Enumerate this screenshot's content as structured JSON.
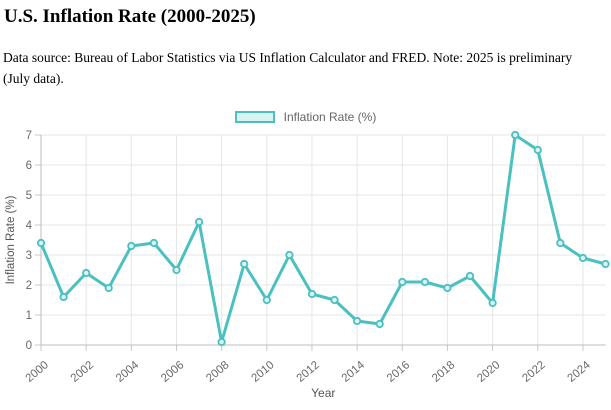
{
  "page": {
    "title": "U.S. Inflation Rate (2000-2025)",
    "subtitle": "Data source: Bureau of Labor Statistics via US Inflation Calculator and FRED. Note: 2025 is preliminary (July data)."
  },
  "legend": {
    "label": "Inflation Rate (%)"
  },
  "colors": {
    "line": "#4BC0C0",
    "point_fill": "#DCF1F0",
    "legend_fill": "rgba(75,192,192,0.2)",
    "gridline": "#E6E6E6",
    "axis_line": "#BDBDBD",
    "tick_mark": "#C9C9C9",
    "tick_text": "#686868",
    "axis_title_text": "#555555"
  },
  "chart_data": {
    "type": "line",
    "title": "U.S. Inflation Rate (2000-2025)",
    "x": [
      2000,
      2001,
      2002,
      2003,
      2004,
      2005,
      2006,
      2007,
      2008,
      2009,
      2010,
      2011,
      2012,
      2013,
      2014,
      2015,
      2016,
      2017,
      2018,
      2019,
      2020,
      2021,
      2022,
      2023,
      2024,
      2025
    ],
    "series": [
      {
        "name": "Inflation Rate (%)",
        "values": [
          3.4,
          1.6,
          2.4,
          1.9,
          3.3,
          3.4,
          2.5,
          4.1,
          0.1,
          2.7,
          1.5,
          3.0,
          1.7,
          1.5,
          0.8,
          0.7,
          2.1,
          2.1,
          1.9,
          2.3,
          1.4,
          7.0,
          6.5,
          3.4,
          2.9,
          2.7
        ]
      }
    ],
    "xlabel": "Year",
    "ylabel": "Inflation Rate (%)",
    "ylim": [
      0,
      7
    ],
    "yticks": [
      0,
      1,
      2,
      3,
      4,
      5,
      6,
      7
    ],
    "xticks": [
      2000,
      2002,
      2004,
      2006,
      2008,
      2010,
      2012,
      2014,
      2016,
      2018,
      2020,
      2022,
      2024
    ],
    "grid": true,
    "legend_position": "top",
    "marker": "circle"
  }
}
